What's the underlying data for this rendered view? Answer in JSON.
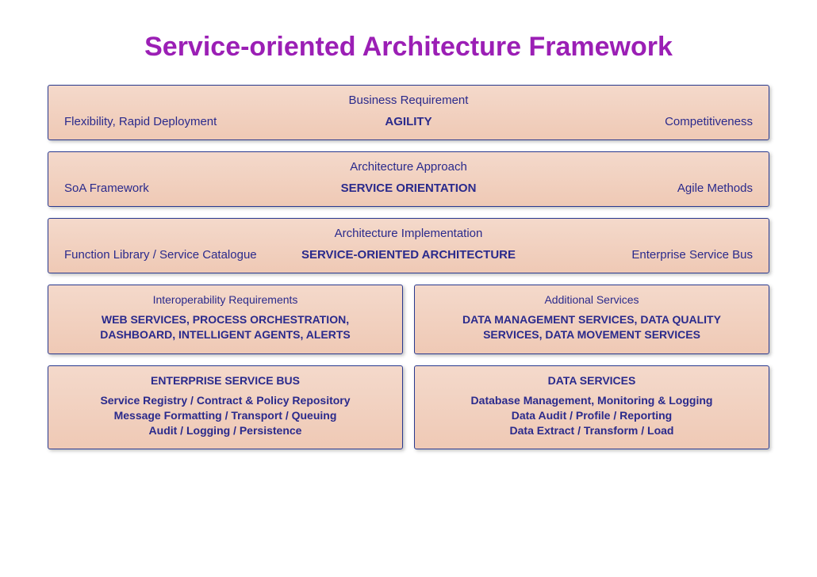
{
  "title": "Service-oriented Architecture Framework",
  "title_color": "#9b1fb5",
  "box_bg_top": "#f4d9cb",
  "box_bg_bottom": "#efc9b5",
  "box_border_color": "#2a3a8f",
  "text_color": "#2a2a8c",
  "rows": [
    {
      "title": "Business Requirement",
      "left": "Flexibility, Rapid Deployment",
      "mid": "AGILITY",
      "right": "Competitiveness"
    },
    {
      "title": "Architecture Approach",
      "left": "SoA Framework",
      "mid": "SERVICE ORIENTATION",
      "right": "Agile Methods"
    },
    {
      "title": "Architecture Implementation",
      "left": "Function Library / Service Catalogue",
      "mid": "SERVICE-ORIENTED ARCHITECTURE",
      "right": "Enterprise Service Bus"
    }
  ],
  "pair1": {
    "left": {
      "title": "Interoperability Requirements",
      "lines": [
        "WEB SERVICES, PROCESS ORCHESTRATION,",
        "DASHBOARD, INTELLIGENT AGENTS, ALERTS"
      ]
    },
    "right": {
      "title": "Additional Services",
      "lines": [
        "DATA MANAGEMENT SERVICES, DATA QUALITY",
        "SERVICES, DATA MOVEMENT SERVICES"
      ]
    }
  },
  "pair2": {
    "left": {
      "title": "ENTERPRISE SERVICE BUS",
      "lines": [
        "Service Registry / Contract & Policy Repository",
        "Message Formatting / Transport / Queuing",
        "Audit / Logging / Persistence"
      ]
    },
    "right": {
      "title": "DATA SERVICES",
      "lines": [
        "Database Management, Monitoring & Logging",
        "Data Audit / Profile / Reporting",
        "Data Extract / Transform / Load"
      ]
    }
  }
}
